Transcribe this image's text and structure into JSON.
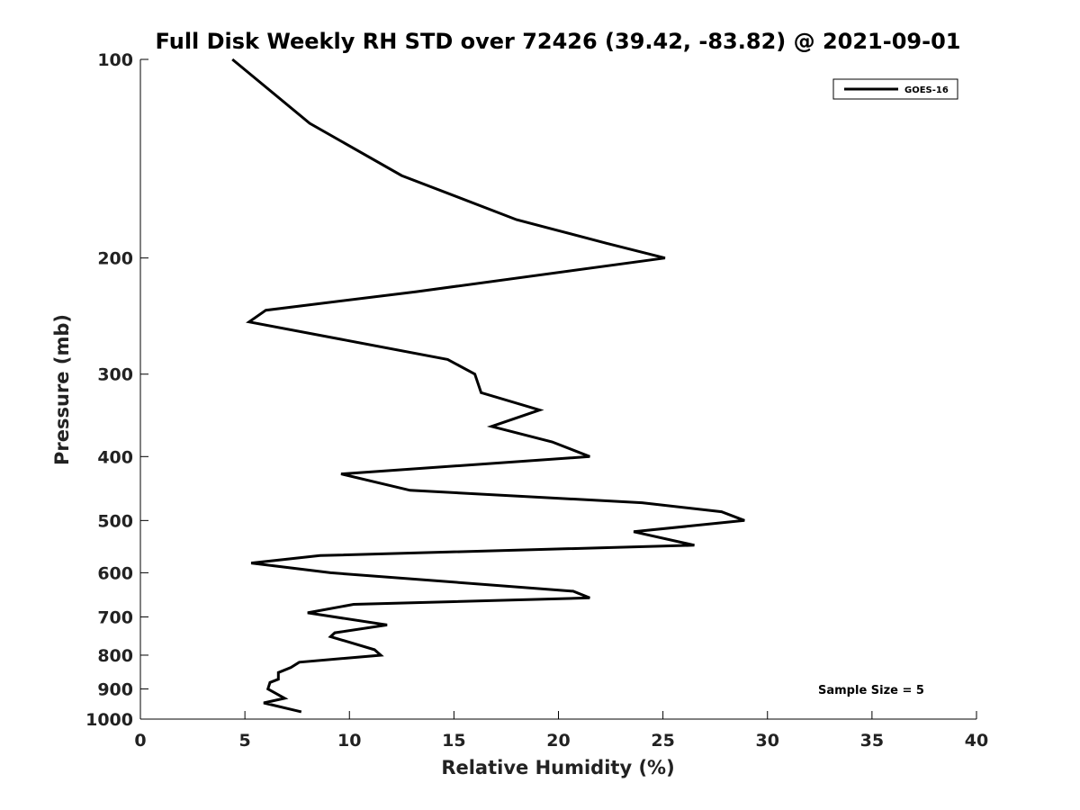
{
  "chart_data": {
    "type": "line",
    "title": "Full Disk Weekly RH STD over 72426 (39.42, -83.82) @ 2021-09-01",
    "xlabel": "Relative Humidity (%)",
    "ylabel": "Pressure (mb)",
    "xlim": [
      0,
      40
    ],
    "ylim": [
      1000,
      100
    ],
    "yscale": "log",
    "x_ticks": [
      "0",
      "5",
      "10",
      "15",
      "20",
      "25",
      "30",
      "35",
      "40"
    ],
    "y_ticks": [
      "100",
      "200",
      "300",
      "400",
      "500",
      "600",
      "700",
      "800",
      "900",
      "1000"
    ],
    "grid": false,
    "legend": {
      "position": "top-right",
      "entries": [
        "GOES-16"
      ]
    },
    "annotation": "Sample Size = 5",
    "series": [
      {
        "name": "GOES-16",
        "color": "#000000",
        "points": [
          [
            4.4,
            100
          ],
          [
            8.1,
            125
          ],
          [
            12.5,
            150
          ],
          [
            18.0,
            175
          ],
          [
            22.3,
            190
          ],
          [
            25.1,
            200
          ],
          [
            13.2,
            225
          ],
          [
            6.0,
            240
          ],
          [
            5.2,
            250
          ],
          [
            14.7,
            285
          ],
          [
            16.0,
            300
          ],
          [
            16.3,
            320
          ],
          [
            19.1,
            340
          ],
          [
            16.8,
            360
          ],
          [
            19.7,
            380
          ],
          [
            21.5,
            400
          ],
          [
            9.6,
            425
          ],
          [
            12.9,
            450
          ],
          [
            24.0,
            470
          ],
          [
            27.8,
            485
          ],
          [
            28.9,
            500
          ],
          [
            23.6,
            520
          ],
          [
            26.5,
            545
          ],
          [
            8.6,
            565
          ],
          [
            5.3,
            580
          ],
          [
            9.1,
            600
          ],
          [
            20.7,
            640
          ],
          [
            21.5,
            655
          ],
          [
            10.2,
            670
          ],
          [
            8.0,
            690
          ],
          [
            11.8,
            720
          ],
          [
            9.3,
            740
          ],
          [
            9.1,
            750
          ],
          [
            11.2,
            785
          ],
          [
            11.5,
            800
          ],
          [
            7.6,
            820
          ],
          [
            7.2,
            835
          ],
          [
            6.6,
            850
          ],
          [
            6.6,
            870
          ],
          [
            6.2,
            880
          ],
          [
            6.1,
            900
          ],
          [
            6.9,
            930
          ],
          [
            5.9,
            945
          ],
          [
            7.7,
            975
          ]
        ]
      }
    ]
  }
}
